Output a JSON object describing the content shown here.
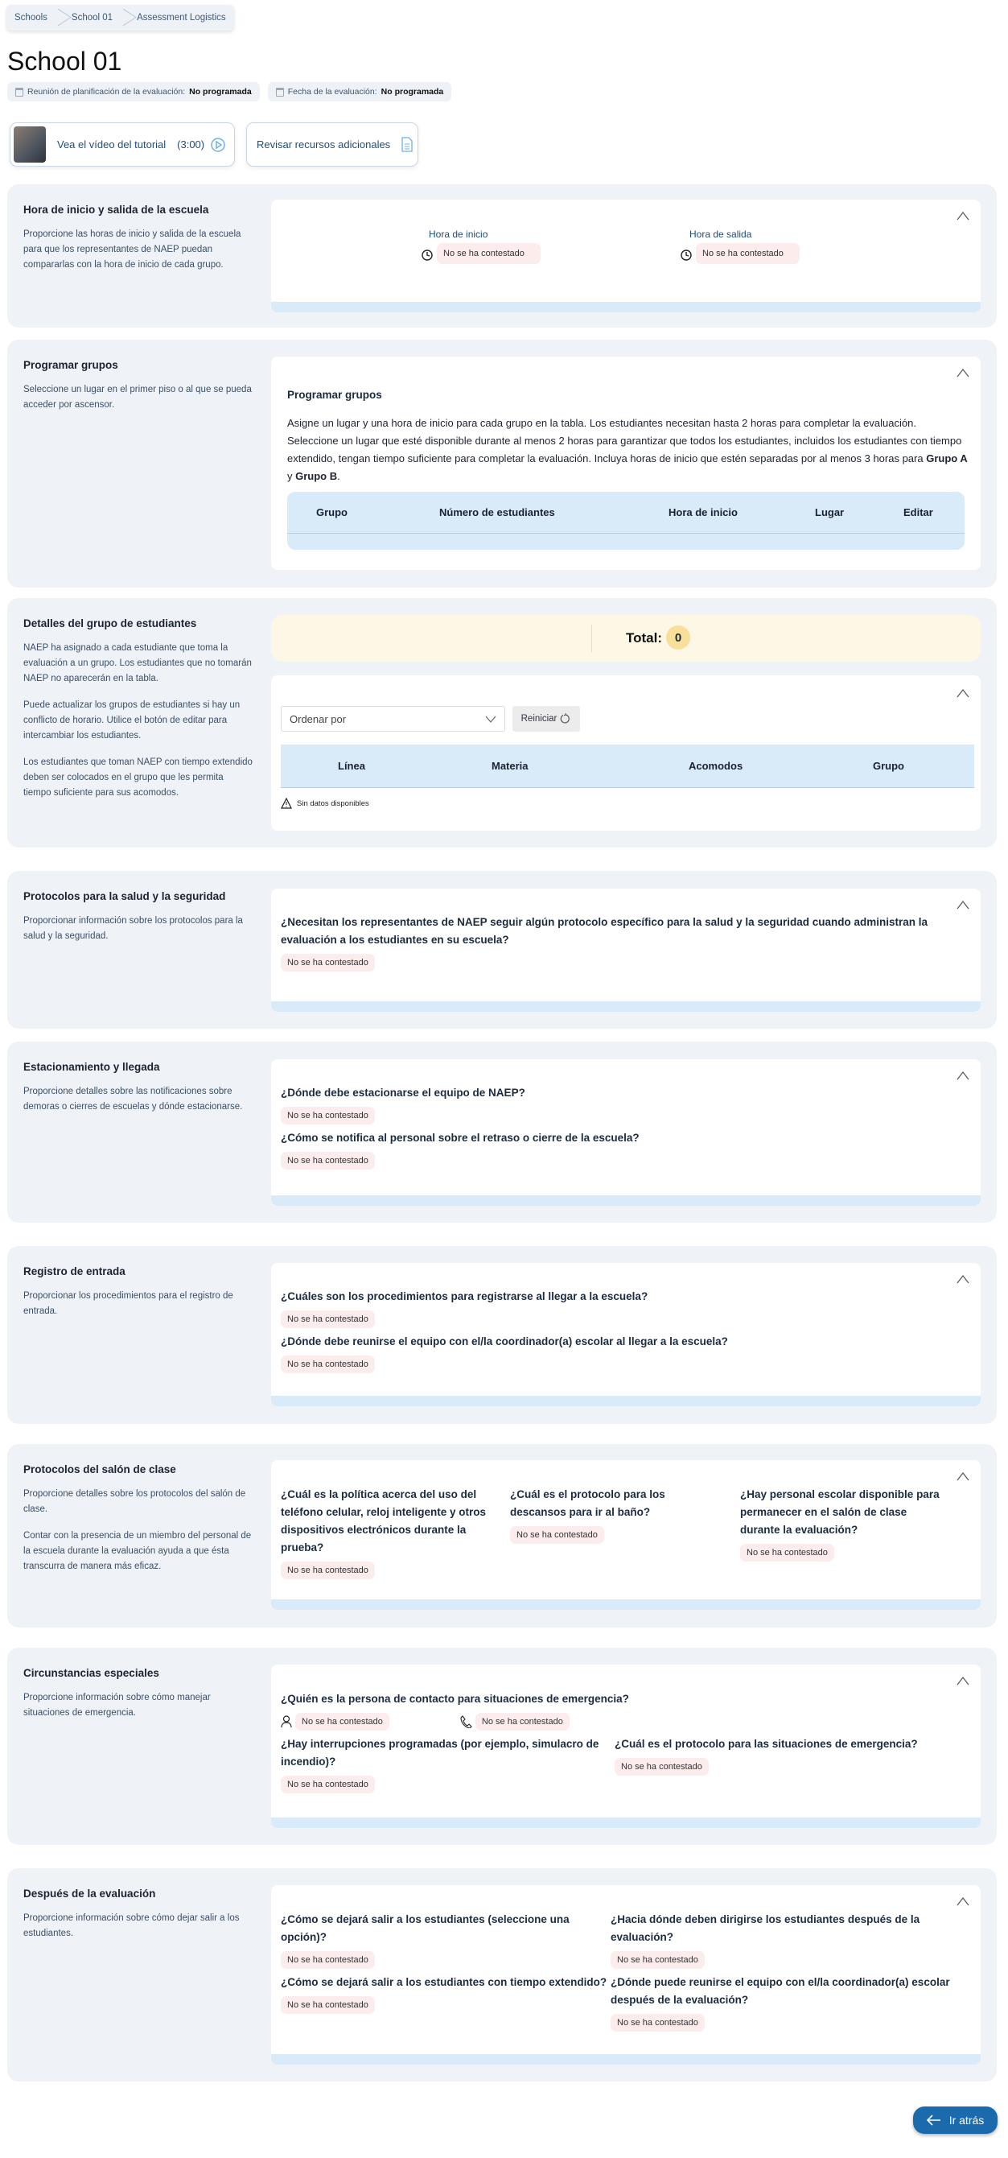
{
  "breadcrumb": [
    "Schools",
    "School 01",
    "Assessment Logistics"
  ],
  "page_title": "School 01",
  "meta": {
    "planning_label": "Reunión de planificación de la evaluación:",
    "planning_value": "No programada",
    "date_label": "Fecha de la evaluación:",
    "date_value": "No programada"
  },
  "tutorial": {
    "video_label": "Vea el vídeo del tutorial",
    "video_duration": "(3:00)",
    "resources_label": "Revisar recursos adicionales"
  },
  "unanswered": "No se ha contestado",
  "s1": {
    "title": "Hora de inicio y salida de la escuela",
    "desc": "Proporcione las horas de inicio y salida de la escuela para que los representantes de NAEP puedan compararlas con la hora de inicio de cada grupo.",
    "start_label": "Hora de inicio",
    "end_label": "Hora de salida"
  },
  "s2": {
    "title": "Programar grupos",
    "desc": "Seleccione un lugar en el primer piso o al que se pueda acceder por ascensor.",
    "card_title": "Programar grupos",
    "para": "Asigne un lugar y una hora de inicio para cada grupo en la tabla. Los estudiantes necesitan hasta 2 horas para completar la evaluación. Seleccione un lugar que esté disponible durante al menos 2 horas para garantizar que todos los estudiantes, incluidos los estudiantes con tiempo extendido, tengan tiempo suficiente para completar la evaluación. Incluya horas de inicio que estén separadas por al menos 3 horas para",
    "group_a": "Grupo A",
    "and": "y",
    "group_b": "Grupo B",
    "columns": [
      "Grupo",
      "Número de estudiantes",
      "Hora de inicio",
      "Lugar",
      "Editar"
    ]
  },
  "s3": {
    "title": "Detalles del grupo de estudiantes",
    "desc": [
      "NAEP ha asignado a cada estudiante que toma la evaluación a un grupo. Los estudiantes que no tomarán NAEP no aparecerán en la tabla.",
      "Puede actualizar los grupos de estudiantes si hay un conflicto de horario. Utilice el botón de editar para intercambiar los estudiantes.",
      "Los estudiantes que toman NAEP con tiempo extendido deben ser colocados en el grupo que les permita tiempo suficiente para sus acomodos."
    ],
    "total_label": "Total:",
    "total_value": "0",
    "sort_placeholder": "Ordenar por",
    "reset_label": "Reiniciar",
    "columns": [
      "Línea",
      "Materia",
      "Acomodos",
      "Grupo"
    ],
    "no_data": "Sin datos disponibles"
  },
  "s4": {
    "title": "Protocolos para la salud y la seguridad",
    "desc": "Proporcionar información sobre los protocolos para la salud y la seguridad.",
    "q1": "¿Necesitan los representantes de NAEP seguir algún protocolo específico para la salud y la seguridad cuando administran la evaluación a los estudiantes en su escuela?"
  },
  "s5": {
    "title": "Estacionamiento y llegada",
    "desc": "Proporcione detalles sobre las notificaciones sobre demoras o cierres de escuelas y dónde estacionarse.",
    "q1": "¿Dónde debe estacionarse el equipo de NAEP?",
    "q2": "¿Cómo se notifica al personal sobre el retraso o cierre de la escuela?"
  },
  "s6": {
    "title": "Registro de entrada",
    "desc": "Proporcionar los procedimientos para el registro de entrada.",
    "q1": "¿Cuáles son los procedimientos para registrarse al llegar a la escuela?",
    "q2": "¿Dónde debe reunirse el equipo con el/la coordinador(a) escolar al llegar a la escuela?"
  },
  "s7": {
    "title": "Protocolos del salón de clase",
    "desc": [
      "Proporcione detalles sobre los protocolos del salón de clase.",
      "Contar con la presencia de un miembro del personal de la escuela durante la evaluación ayuda a que ésta transcurra de manera más eficaz."
    ],
    "q1": "¿Cuál es la política acerca del uso del teléfono celular, reloj inteligente y otros dispositivos electrónicos durante la prueba?",
    "q2": "¿Cuál es el protocolo para los descansos para ir al baño?",
    "q3": "¿Hay personal escolar disponible para permanecer en el salón de clase durante la evaluación?"
  },
  "s8": {
    "title": "Circunstancias especiales",
    "desc": "Proporcione información sobre cómo manejar situaciones de emergencia.",
    "q1": "¿Quién es la persona de contacto para situaciones de emergencia?",
    "q2": "¿Hay interrupciones programadas (por ejemplo, simulacro de incendio)?",
    "q3": "¿Cuál es el protocolo para las situaciones de emergencia?"
  },
  "s9": {
    "title": "Después de la evaluación",
    "desc": "Proporcione información sobre cómo dejar salir a los estudiantes.",
    "q1": "¿Cómo se dejará salir a los estudiantes (seleccione una opción)?",
    "q2": "¿Hacia dónde deben dirigirse los estudiantes después de la evaluación?",
    "q3": "¿Cómo se dejará salir a los estudiantes con tiempo extendido?",
    "q4": "¿Dónde puede reunirse el equipo con el/la coordinador(a) escolar después de la evaluación?"
  },
  "back_label": "Ir atrás",
  "colors": {
    "accent": "#1b6aad",
    "section_bg": "#eff3f7",
    "table_header": "#d9eaf8",
    "badge_bg": "#fdecec",
    "total_bg": "#fdf7e6"
  }
}
